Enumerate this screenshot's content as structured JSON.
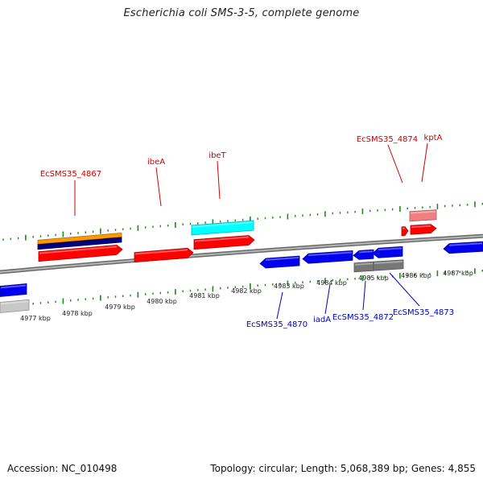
{
  "title": "Escherichia coli SMS-3-5, complete genome",
  "footer": {
    "accession": "Accession: NC_010498",
    "summary": "Topology: circular; Length: 5,068,389 bp; Genes: 4,855"
  },
  "colors": {
    "label_top": "#cc0000",
    "label_bottom": "#0000bb",
    "backbone": "#888888",
    "tick": "#1a8a1a",
    "red": "#ff0000",
    "blue": "#0000ee",
    "cyan": "#00ffff",
    "orange": "#ff9900",
    "navy": "#000080",
    "pink": "#f08080",
    "gray": "#777777",
    "lightgray": "#c8c8c8"
  },
  "scale": {
    "labels": [
      "4977 kbp",
      "4978 kbp",
      "4979 kbp",
      "4980 kbp",
      "4981 kbp",
      "4982 kbp",
      "4983 kbp",
      "4984 kbp",
      "4985 kbp",
      "4986 kbp",
      "4987 kbp"
    ]
  },
  "gene_labels": {
    "top": [
      "EcSMS35_4867",
      "ibeA",
      "ibeT",
      "EcSMS35_4874",
      "kptA"
    ],
    "bottom": [
      "EcSMS35_4870",
      "iadA",
      "EcSMS35_4872",
      "EcSMS35_4873"
    ]
  }
}
